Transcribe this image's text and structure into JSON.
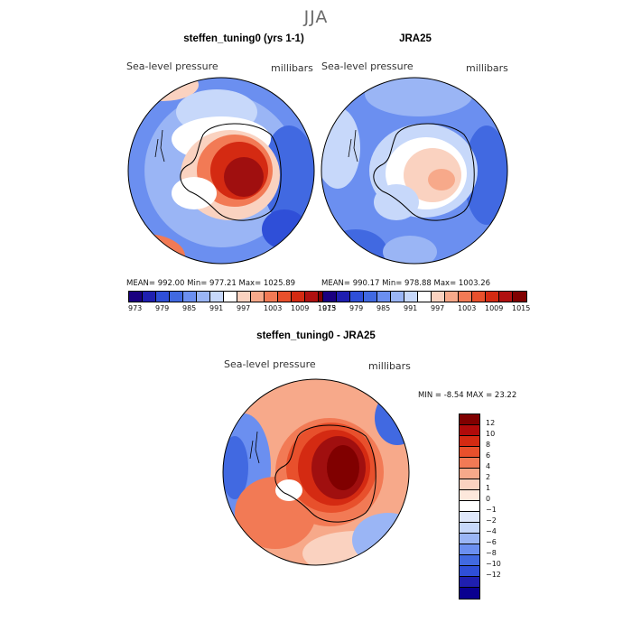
{
  "season_title": "JJA",
  "panel_left": {
    "title": "steffen_tuning0 (yrs 1-1)",
    "variable": "Sea-level pressure",
    "units": "millibars",
    "stats": "MEAN= 992.00   Min= 977.21   Max= 1025.89"
  },
  "panel_right": {
    "title": "JRA25",
    "variable": "Sea-level pressure",
    "units": "millibars",
    "stats": "MEAN= 990.17   Min= 978.88   Max= 1003.26"
  },
  "panel_diff": {
    "title": "steffen_tuning0 - JRA25",
    "variable": "Sea-level pressure",
    "units": "millibars",
    "minmax": "MIN =   -8.54  MAX =   23.22"
  },
  "colorbar_top": {
    "colors": [
      "#1a0080",
      "#1f1fb0",
      "#2f4fd8",
      "#4169e1",
      "#6b8ff0",
      "#9ab5f5",
      "#c7d8fa",
      "#ffffff",
      "#fad2c0",
      "#f7a98a",
      "#f27a55",
      "#e8502c",
      "#d42a12",
      "#b01010",
      "#800000"
    ],
    "labels": [
      "973",
      "979",
      "985",
      "991",
      "997",
      "1003",
      "1009",
      "1015"
    ]
  },
  "colorbar_diff": {
    "colors": [
      "#800000",
      "#b00a0a",
      "#d42a12",
      "#e8502c",
      "#f27a55",
      "#f7a98a",
      "#fad2c0",
      "#fde8dc",
      "#ffffff",
      "#dfe8fb",
      "#c7d8fa",
      "#9ab5f5",
      "#6b8ff0",
      "#4169e1",
      "#2f4fd8",
      "#1f1fb0",
      "#0a0090"
    ],
    "labels": [
      "12",
      "10",
      "8",
      "6",
      "4",
      "2",
      "1",
      "0",
      "−1",
      "−2",
      "−4",
      "−6",
      "−8",
      "−10",
      "−12"
    ]
  }
}
